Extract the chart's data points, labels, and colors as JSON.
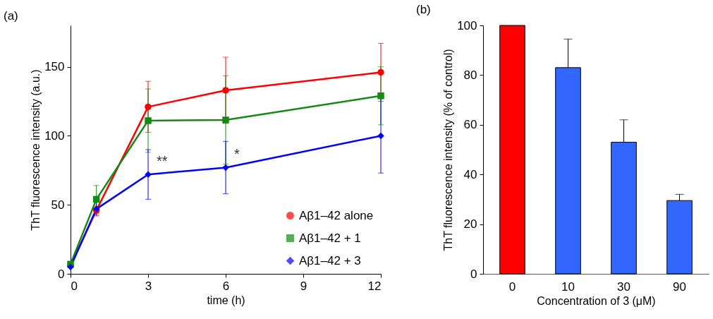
{
  "chart_data": [
    {
      "type": "line",
      "title": "(a)",
      "xlabel": "time (h)",
      "ylabel": "ThT fluorescence intensity (a.u.)",
      "x": [
        0,
        1,
        3,
        6,
        12
      ],
      "xlim": [
        0,
        12
      ],
      "xticks": [
        0,
        3,
        6,
        9,
        12
      ],
      "ylim": [
        0,
        180
      ],
      "yticks": [
        0,
        50,
        100,
        150
      ],
      "grid": false,
      "legend": "bottom right",
      "series": [
        {
          "name": "Aβ1–42 alone",
          "color": "#ff0000",
          "marker": "circle",
          "values": [
            6,
            46,
            121,
            133,
            146
          ],
          "errors": [
            null,
            3,
            18.5,
            24,
            21
          ]
        },
        {
          "name": "Aβ1–42 + 1",
          "color": "#138a13",
          "marker": "square",
          "values": [
            7,
            54,
            111,
            111.5,
            129
          ],
          "errors": [
            null,
            10,
            23,
            32,
            21
          ]
        },
        {
          "name": "Aβ1–42 + 3",
          "color": "#0000ff",
          "marker": "diamond",
          "values": [
            5,
            47,
            72,
            77,
            100
          ],
          "errors": [
            null,
            5,
            18,
            19,
            27
          ]
        }
      ],
      "annotations": [
        {
          "text": "**",
          "x": 3,
          "y": 72
        },
        {
          "text": "*",
          "x": 6,
          "y": 77
        }
      ]
    },
    {
      "type": "bar",
      "title": "(b)",
      "xlabel": "Concentration of 3 (μM)",
      "ylabel": "ThT fluorescence intensity  (% of control)",
      "categories": [
        "0",
        "10",
        "30",
        "90"
      ],
      "values": [
        100,
        83,
        53,
        29.5
      ],
      "colors": [
        "#ff0000",
        "#3366ff",
        "#3366ff",
        "#3366ff"
      ],
      "errors": [
        null,
        [
          83,
          94.5
        ],
        [
          53,
          62
        ],
        [
          29.5,
          32
        ]
      ],
      "ylim": [
        0,
        100
      ],
      "yticks": [
        0,
        20,
        40,
        60,
        80,
        100
      ],
      "grid": false,
      "legend": false
    }
  ]
}
